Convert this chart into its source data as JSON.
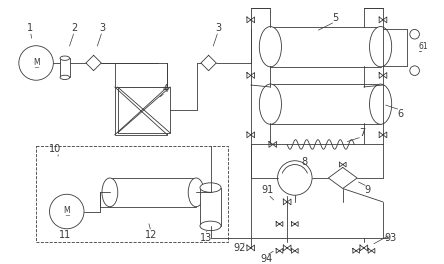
{
  "bg_color": "#ffffff",
  "line_color": "#3a3a3a",
  "fig_width": 4.44,
  "fig_height": 2.64,
  "lw": 0.8,
  "tlw": 0.6
}
